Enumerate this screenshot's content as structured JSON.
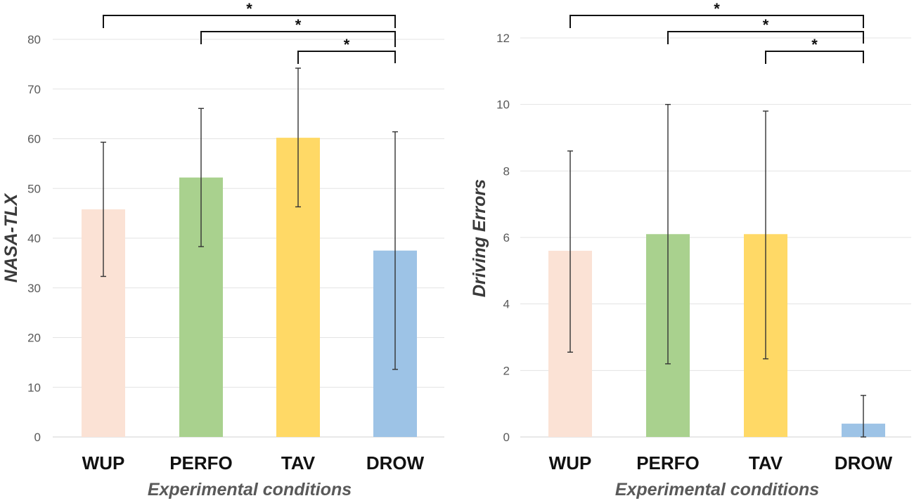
{
  "chart_data": [
    {
      "type": "bar",
      "title": "",
      "xlabel": "Experimental conditions",
      "ylabel": "NASA-TLX",
      "ylim": [
        0,
        80
      ],
      "yticks": [
        0,
        10,
        20,
        30,
        40,
        50,
        60,
        70,
        80
      ],
      "ytick_labels": [
        "0",
        "10",
        "20",
        "30",
        "40",
        "50",
        "60",
        "70",
        "80"
      ],
      "categories": [
        "WUP",
        "PERFO",
        "TAV",
        "DROW"
      ],
      "values": [
        45.8,
        52.2,
        60.2,
        37.5
      ],
      "error_low": [
        32.3,
        38.3,
        46.3,
        13.6
      ],
      "error_high": [
        59.3,
        66.1,
        74.2,
        61.4
      ],
      "colors": [
        "#fbe2d5",
        "#a9d18e",
        "#ffd966",
        "#9dc3e6"
      ],
      "significance": [
        {
          "from": "WUP",
          "to": "DROW",
          "label": "*"
        },
        {
          "from": "PERFO",
          "to": "DROW",
          "label": "*"
        },
        {
          "from": "TAV",
          "to": "DROW",
          "label": "*"
        }
      ]
    },
    {
      "type": "bar",
      "title": "",
      "xlabel": "Experimental conditions",
      "ylabel": "Driving Errors",
      "ylim": [
        0,
        12
      ],
      "yticks": [
        0,
        2,
        4,
        6,
        8,
        10,
        12
      ],
      "ytick_labels": [
        "0",
        "2",
        "4",
        "6",
        "8",
        "10",
        "12"
      ],
      "categories": [
        "WUP",
        "PERFO",
        "TAV",
        "DROW"
      ],
      "values": [
        5.6,
        6.1,
        6.1,
        0.4
      ],
      "error_low": [
        2.55,
        2.2,
        2.35,
        0
      ],
      "error_high": [
        8.6,
        10.0,
        9.8,
        1.25
      ],
      "colors": [
        "#fbe2d5",
        "#a9d18e",
        "#ffd966",
        "#9dc3e6"
      ],
      "significance": [
        {
          "from": "WUP",
          "to": "DROW",
          "label": "*"
        },
        {
          "from": "PERFO",
          "to": "DROW",
          "label": "*"
        },
        {
          "from": "TAV",
          "to": "DROW",
          "label": "*"
        }
      ]
    }
  ]
}
